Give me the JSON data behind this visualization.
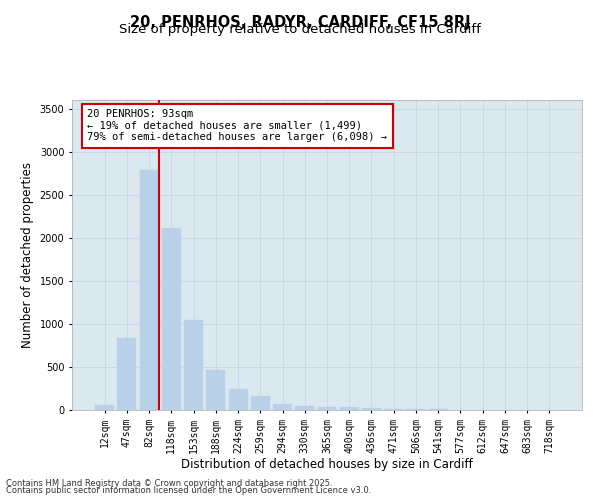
{
  "title1": "20, PENRHOS, RADYR, CARDIFF, CF15 8RJ",
  "title2": "Size of property relative to detached houses in Cardiff",
  "xlabel": "Distribution of detached houses by size in Cardiff",
  "ylabel": "Number of detached properties",
  "categories": [
    "12sqm",
    "47sqm",
    "82sqm",
    "118sqm",
    "153sqm",
    "188sqm",
    "224sqm",
    "259sqm",
    "294sqm",
    "330sqm",
    "365sqm",
    "400sqm",
    "436sqm",
    "471sqm",
    "506sqm",
    "541sqm",
    "577sqm",
    "612sqm",
    "647sqm",
    "683sqm",
    "718sqm"
  ],
  "values": [
    55,
    840,
    2790,
    2110,
    1040,
    460,
    240,
    160,
    65,
    50,
    40,
    30,
    20,
    15,
    10,
    8,
    5,
    4,
    3,
    2,
    2
  ],
  "bar_color": "#b8d0e8",
  "bar_edge_color": "#b8d0e8",
  "vline_color": "#cc0000",
  "annotation_text": "20 PENRHOS: 93sqm\n← 19% of detached houses are smaller (1,499)\n79% of semi-detached houses are larger (6,098) →",
  "annotation_box_facecolor": "#ffffff",
  "annotation_box_edgecolor": "#cc0000",
  "ylim": [
    0,
    3600
  ],
  "yticks": [
    0,
    500,
    1000,
    1500,
    2000,
    2500,
    3000,
    3500
  ],
  "grid_color": "#c8d8e8",
  "background_color": "#dce8f0",
  "footer1": "Contains HM Land Registry data © Crown copyright and database right 2025.",
  "footer2": "Contains public sector information licensed under the Open Government Licence v3.0.",
  "title_fontsize": 10.5,
  "subtitle_fontsize": 9.5,
  "tick_fontsize": 7,
  "ylabel_fontsize": 8.5,
  "xlabel_fontsize": 8.5,
  "annotation_fontsize": 7.5,
  "footer_fontsize": 6
}
